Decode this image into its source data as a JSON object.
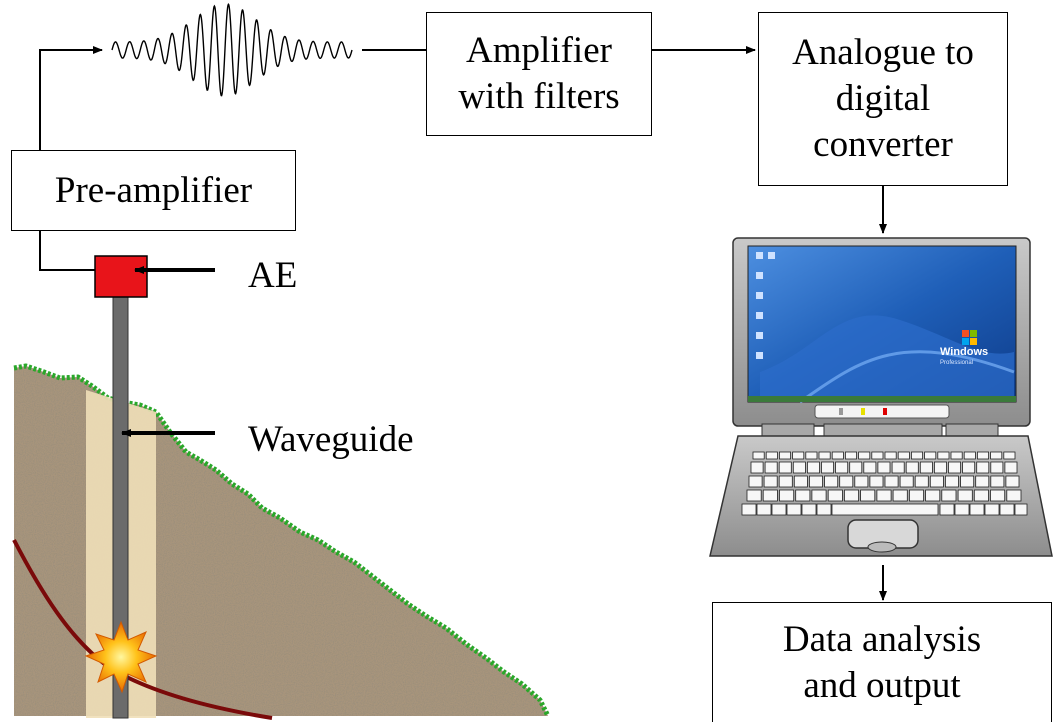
{
  "boxes": {
    "pre_amplifier": "Pre-amplifier",
    "amplifier": "Amplifier with filters",
    "adc": "Analogue to digital converter",
    "data_analysis": "Data analysis and output"
  },
  "labels": {
    "ae": "AE",
    "waveguide": "Waveguide"
  },
  "laptop_screen": {
    "os_logo_text": "Windows",
    "os_edition_text": "Professional"
  },
  "colors": {
    "sensor": "#e8141a",
    "soil": "#a9957c",
    "grass": "#2aa72a",
    "borehole": "#f0dfb8",
    "waveguide": "#6b6b6b",
    "slip_surface": "#7a0a0a",
    "screen": "#1f5fb8"
  }
}
